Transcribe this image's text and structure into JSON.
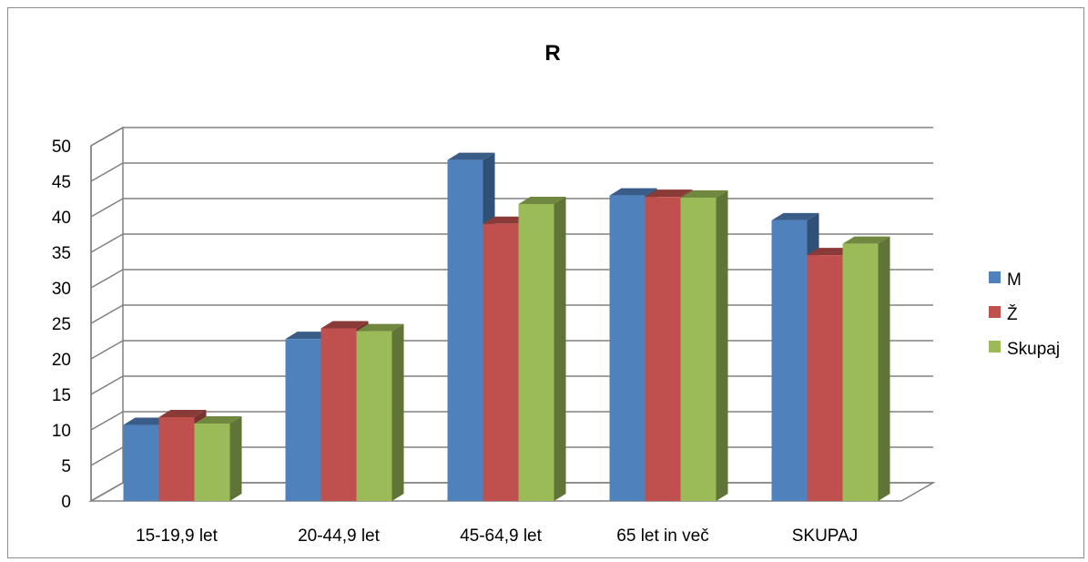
{
  "chart_data": {
    "type": "bar",
    "title": "R",
    "categories": [
      "15-19,9 let",
      "20-44,9 let",
      "45-64,9 let",
      "65 let in več",
      "SKUPAJ"
    ],
    "series": [
      {
        "name": "M",
        "values": [
          10.7,
          22.8,
          48.0,
          43.0,
          39.5
        ],
        "color": "#4F81BD"
      },
      {
        "name": "Ž",
        "values": [
          11.8,
          24.3,
          39.0,
          42.8,
          34.6
        ],
        "color": "#C0504D"
      },
      {
        "name": "Skupaj",
        "values": [
          10.9,
          23.9,
          41.8,
          42.7,
          36.2
        ],
        "color": "#9BBB59"
      }
    ],
    "ylim": [
      0,
      50
    ],
    "yticks": [
      0,
      5,
      10,
      15,
      20,
      25,
      30,
      35,
      40,
      45,
      50
    ],
    "xlabel": "",
    "ylabel": "",
    "grid": true,
    "legend": "right",
    "style": "3d-clustered-column"
  }
}
